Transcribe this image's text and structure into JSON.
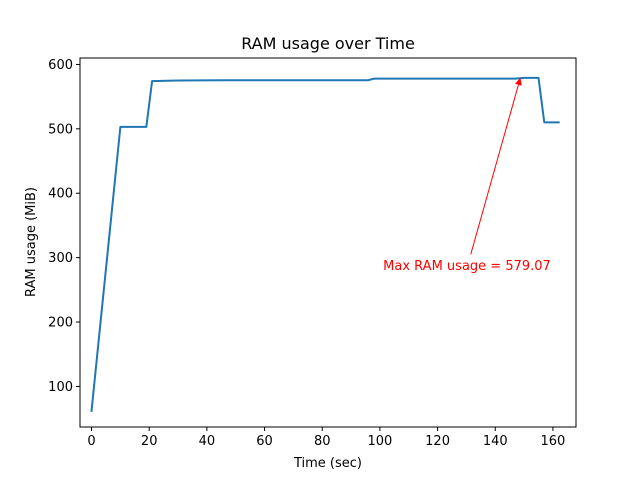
{
  "chart_data": {
    "type": "line",
    "title": "RAM usage over Time",
    "xlabel": "Time (sec)",
    "ylabel": "RAM usage (MiB)",
    "xlim": [
      -4,
      168
    ],
    "ylim": [
      37,
      610
    ],
    "xticks": [
      0,
      20,
      40,
      60,
      80,
      100,
      120,
      140,
      160
    ],
    "yticks": [
      100,
      200,
      300,
      400,
      500,
      600
    ],
    "grid": false,
    "series": [
      {
        "color": "#1f77b4",
        "x": [
          0,
          10,
          19,
          21,
          30,
          45,
          60,
          75,
          96,
          98,
          105,
          120,
          140,
          147,
          150,
          155,
          157,
          162
        ],
        "y": [
          62,
          503,
          503,
          574,
          575,
          575.5,
          575.5,
          575.5,
          575.5,
          578,
          578,
          578,
          578,
          578,
          579.07,
          579.07,
          510,
          510
        ]
      }
    ],
    "annotation": {
      "text": "Max RAM usage = 579.07",
      "color": "#ff0000",
      "point": [
        148.7,
        579.07
      ],
      "text_anchor_point": [
        131.5,
        305
      ]
    }
  }
}
